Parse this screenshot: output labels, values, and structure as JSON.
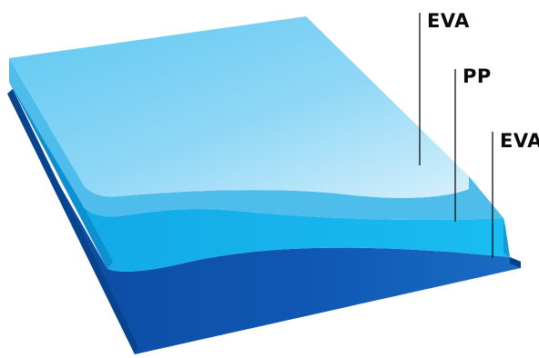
{
  "layers": [
    {
      "label": "EVA",
      "color": "#6fcdf2"
    },
    {
      "label": "PP",
      "color": "#1aa8e4"
    },
    {
      "label": "EVA",
      "color": "#1a5fb5"
    }
  ],
  "colors": {
    "top_surface_light": "#d8f1fc",
    "top_surface_mid": "#7ad0f4",
    "top_layer": "#5ec6ef",
    "middle_layer": "#15b2ec",
    "bottom_layer": "#0d4fa6",
    "bottom_edge": "#08438e",
    "leader_line": "#111111"
  }
}
